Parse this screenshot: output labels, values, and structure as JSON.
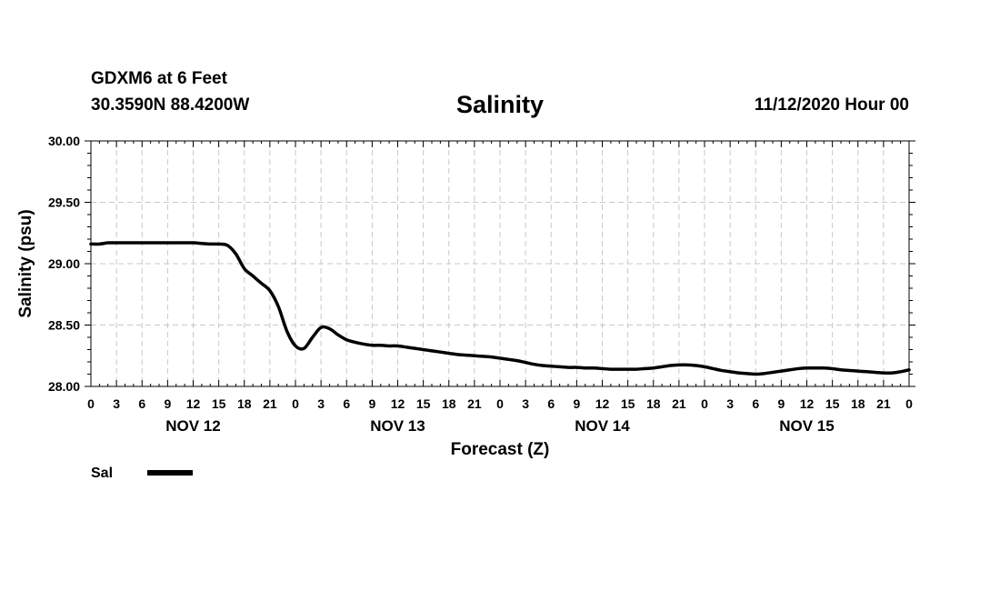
{
  "header": {
    "station": "GDXM6 at 6 Feet",
    "coords": "30.3590N 88.4200W",
    "title": "Salinity",
    "datetime": "11/12/2020 Hour 00"
  },
  "colors": {
    "line": "#000000",
    "grid": "#c8c8c8",
    "axis": "#000000"
  },
  "chart_data": {
    "type": "line",
    "title": "Salinity",
    "xlabel": "Forecast (Z)",
    "ylabel": "Salinity (psu)",
    "x_unit": "forecast hours",
    "xlim": [
      0,
      96
    ],
    "ylim": [
      28.0,
      30.0
    ],
    "y_ticks": [
      "30.00",
      "29.50",
      "29.00",
      "28.50",
      "28.00"
    ],
    "x_tick_hours": [
      0,
      3,
      6,
      9,
      12,
      15,
      18,
      21,
      24,
      27,
      30,
      33,
      36,
      39,
      42,
      45,
      48,
      51,
      54,
      57,
      60,
      63,
      66,
      69,
      72,
      75,
      78,
      81,
      84,
      87,
      90,
      93,
      96
    ],
    "x_tick_labels": [
      "0",
      "3",
      "6",
      "9",
      "12",
      "15",
      "18",
      "21",
      "0",
      "3",
      "6",
      "9",
      "12",
      "15",
      "18",
      "21",
      "0",
      "3",
      "6",
      "9",
      "12",
      "15",
      "18",
      "21",
      "0",
      "3",
      "6",
      "9",
      "12",
      "15",
      "18",
      "21",
      "0"
    ],
    "day_labels": [
      {
        "label": "NOV 12",
        "hour": 12
      },
      {
        "label": "NOV 13",
        "hour": 36
      },
      {
        "label": "NOV 14",
        "hour": 60
      },
      {
        "label": "NOV 15",
        "hour": 84
      }
    ],
    "series": [
      {
        "name": "Sal",
        "x": [
          0,
          1,
          2,
          3,
          4,
          5,
          6,
          7,
          8,
          9,
          10,
          11,
          12,
          13,
          14,
          15,
          16,
          17,
          18,
          19,
          20,
          21,
          22,
          23,
          24,
          25,
          26,
          27,
          28,
          29,
          30,
          31,
          32,
          33,
          34,
          35,
          36,
          37,
          38,
          39,
          40,
          41,
          42,
          43,
          44,
          45,
          46,
          47,
          48,
          49,
          50,
          51,
          52,
          53,
          54,
          55,
          56,
          57,
          58,
          59,
          60,
          61,
          62,
          63,
          64,
          65,
          66,
          67,
          68,
          69,
          70,
          71,
          72,
          73,
          74,
          75,
          76,
          77,
          78,
          79,
          80,
          81,
          82,
          83,
          84,
          85,
          86,
          87,
          88,
          89,
          90,
          91,
          92,
          93,
          94,
          95,
          96
        ],
        "y": [
          29.16,
          29.16,
          29.17,
          29.17,
          29.17,
          29.17,
          29.17,
          29.17,
          29.17,
          29.17,
          29.17,
          29.17,
          29.17,
          29.165,
          29.16,
          29.16,
          29.15,
          29.08,
          28.96,
          28.9,
          28.84,
          28.78,
          28.65,
          28.45,
          28.33,
          28.31,
          28.4,
          28.48,
          28.47,
          28.42,
          28.38,
          28.36,
          28.345,
          28.335,
          28.335,
          28.33,
          28.33,
          28.32,
          28.31,
          28.3,
          28.29,
          28.28,
          28.27,
          28.26,
          28.255,
          28.25,
          28.245,
          28.24,
          28.23,
          28.22,
          28.21,
          28.195,
          28.18,
          28.17,
          28.165,
          28.16,
          28.155,
          28.155,
          28.15,
          28.15,
          28.145,
          28.14,
          28.14,
          28.14,
          28.14,
          28.145,
          28.15,
          28.16,
          28.17,
          28.175,
          28.175,
          28.17,
          28.16,
          28.145,
          28.13,
          28.12,
          28.11,
          28.105,
          28.1,
          28.105,
          28.115,
          28.125,
          28.135,
          28.145,
          28.15,
          28.15,
          28.15,
          28.145,
          28.135,
          28.13,
          28.125,
          28.12,
          28.115,
          28.11,
          28.11,
          28.12,
          28.135
        ]
      }
    ],
    "legend": {
      "label": "Sal",
      "placement": "bottom-left"
    }
  }
}
